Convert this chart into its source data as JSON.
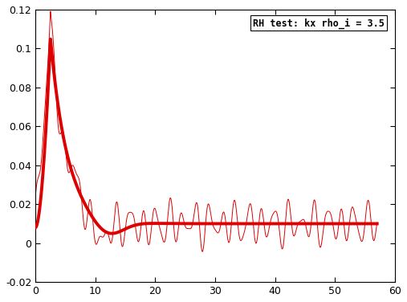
{
  "title": "RH test: kx rho_i = 3.5",
  "xlim": [
    0,
    60
  ],
  "ylim": [
    -0.02,
    0.12
  ],
  "xticks": [
    0,
    10,
    20,
    30,
    40,
    50,
    60
  ],
  "yticks": [
    -0.02,
    0,
    0.02,
    0.04,
    0.06,
    0.08,
    0.1,
    0.12
  ],
  "line_color": "#dd0000",
  "bg_color": "#ffffff",
  "thin_linewidth": 0.7,
  "thick_linewidth": 2.8,
  "residual_level": 0.01
}
